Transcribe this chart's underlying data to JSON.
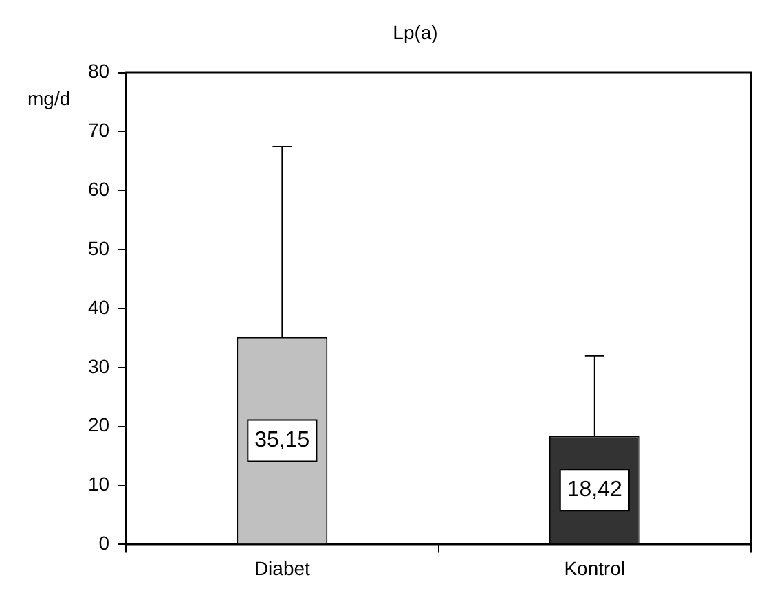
{
  "chart_data": {
    "type": "bar",
    "title": "Lp(a)",
    "ylabel": "mg/d",
    "categories": [
      "Diabet",
      "Kontrol"
    ],
    "values": [
      35.15,
      18.42
    ],
    "colors": [
      "#c0c0c0",
      "#333333"
    ],
    "errors": [
      [
        35.15,
        67.5
      ],
      [
        18.42,
        32
      ]
    ],
    "value_labels": [
      "35,15",
      "18,42"
    ],
    "ylim": [
      0,
      80
    ],
    "yticks": [
      0,
      10,
      20,
      30,
      40,
      50,
      60,
      70,
      80
    ],
    "grid": false,
    "legend": false
  }
}
